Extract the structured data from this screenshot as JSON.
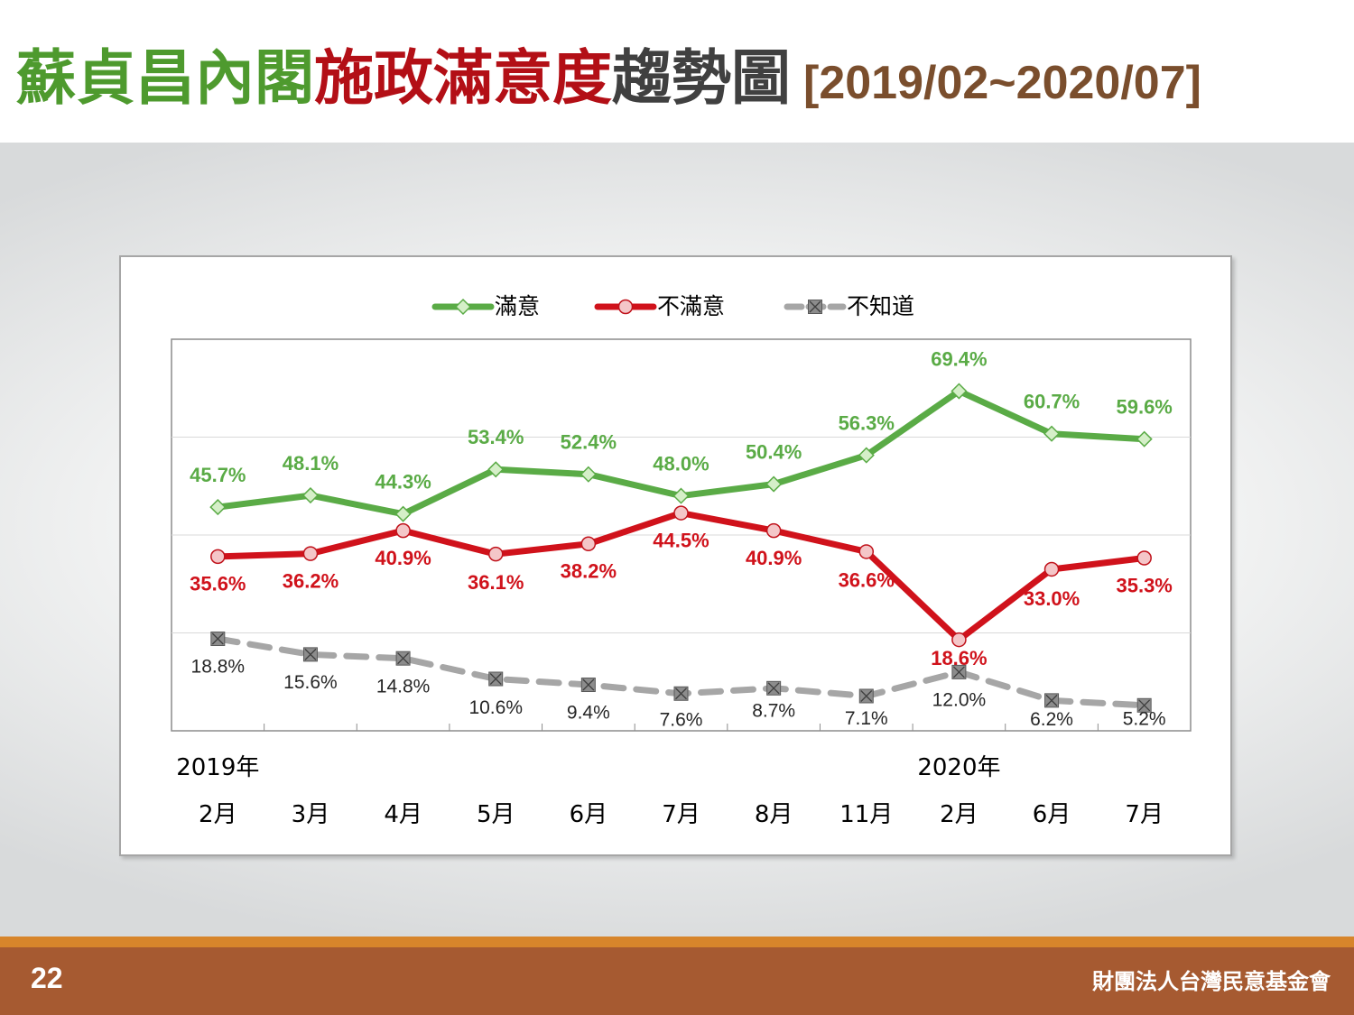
{
  "slide": {
    "title_part1": "蘇貞昌內閣",
    "title_part2": "施政滿意度",
    "title_part3": "趨勢圖",
    "title_range": "[2019/02~2020/07]",
    "page_number": "22",
    "organization": "財團法人台灣民意基金會"
  },
  "chart_data": {
    "type": "line",
    "categories": [
      "2月",
      "3月",
      "4月",
      "5月",
      "6月",
      "7月",
      "8月",
      "11月",
      "2月",
      "6月",
      "7月"
    ],
    "year_labels": [
      {
        "label": "2019年",
        "category_index": 0
      },
      {
        "label": "2020年",
        "category_index": 8
      }
    ],
    "series": [
      {
        "name": "滿意",
        "values": [
          45.7,
          48.1,
          44.3,
          53.4,
          52.4,
          48.0,
          50.4,
          56.3,
          69.4,
          60.7,
          59.6
        ],
        "labels": [
          "45.7%",
          "48.1%",
          "44.3%",
          "53.4%",
          "52.4%",
          "48.0%",
          "50.4%",
          "56.3%",
          "69.4%",
          "60.7%",
          "59.6%"
        ],
        "color": "#5aab46",
        "marker": "diamond",
        "dash": "solid"
      },
      {
        "name": "不滿意",
        "values": [
          35.6,
          36.2,
          40.9,
          36.1,
          38.2,
          44.5,
          40.9,
          36.6,
          18.6,
          33.0,
          35.3
        ],
        "labels": [
          "35.6%",
          "36.2%",
          "40.9%",
          "36.1%",
          "38.2%",
          "44.5%",
          "40.9%",
          "36.6%",
          "18.6%",
          "33.0%",
          "35.3%"
        ],
        "color": "#d0121b",
        "marker": "circle",
        "dash": "solid"
      },
      {
        "name": "不知道",
        "values": [
          18.8,
          15.6,
          14.8,
          10.6,
          9.4,
          7.6,
          8.7,
          7.1,
          12.0,
          6.2,
          5.2
        ],
        "labels": [
          "18.8%",
          "15.6%",
          "14.8%",
          "10.6%",
          "9.4%",
          "7.6%",
          "8.7%",
          "7.1%",
          "12.0%",
          "6.2%",
          "5.2%"
        ],
        "color": "#a6a6a6",
        "marker": "square-x",
        "dash": "dashed"
      }
    ],
    "ylim": [
      0,
      80
    ],
    "grid": "horizontal",
    "legend_position": "top-center"
  }
}
